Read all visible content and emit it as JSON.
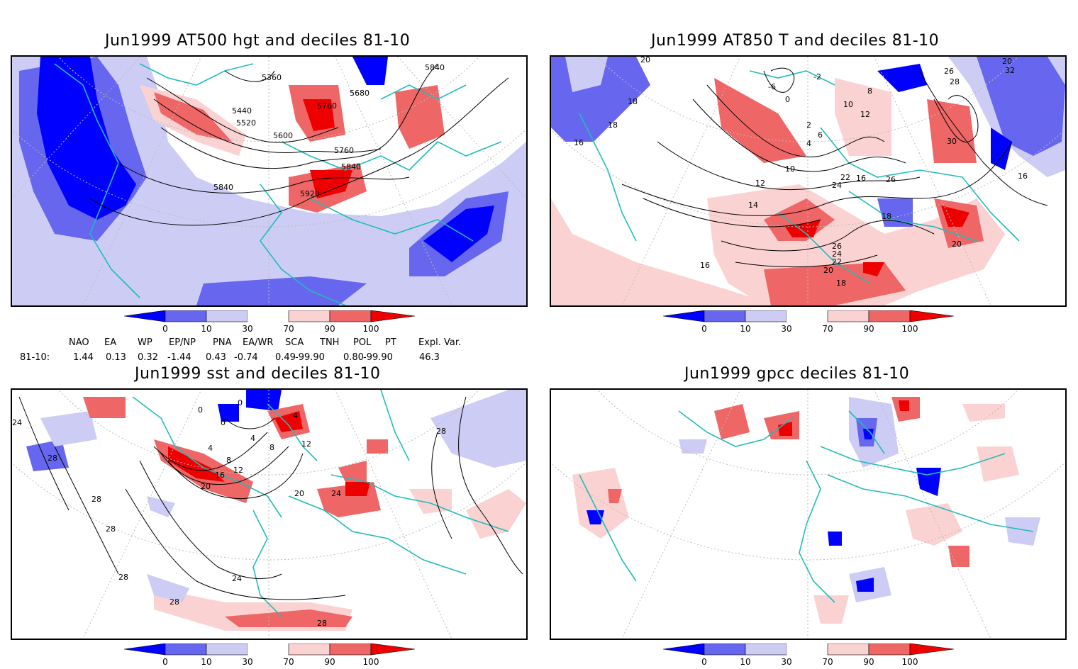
{
  "panels": {
    "p1": {
      "title": "Jun1999 AT500 hgt and deciles 81-10",
      "contour_labels": [
        "5360",
        "5440",
        "5520",
        "5600",
        "5680",
        "5760",
        "5760",
        "5840",
        "5840",
        "5840",
        "5920"
      ]
    },
    "p2": {
      "title": "Jun1999 AT850 T and deciles 81-10",
      "contour_labels": [
        "20",
        "18",
        "18",
        "16",
        "-6",
        "0",
        "-2",
        "2",
        "6",
        "4",
        "8",
        "10",
        "12",
        "10",
        "12",
        "14",
        "16",
        "22",
        "24",
        "26",
        "20",
        "26",
        "28",
        "30",
        "32",
        "18",
        "26",
        "24",
        "22",
        "20",
        "18",
        "20",
        "16",
        "16"
      ]
    },
    "p3": {
      "title": "Jun1999 sst and deciles 81-10",
      "contour_labels": [
        "24",
        "28",
        "28",
        "28",
        "28",
        "0",
        "0",
        "0",
        "4",
        "4",
        "8",
        "4",
        "8",
        "12",
        "12",
        "16",
        "20",
        "20",
        "24",
        "24",
        "28",
        "28",
        "28"
      ]
    },
    "p4": {
      "title": "Jun1999 gpcc deciles 81-10",
      "contour_labels": []
    }
  },
  "colorbar": {
    "ticks": [
      "0",
      "10",
      "30",
      "70",
      "90",
      "100"
    ],
    "colors": {
      "dark_blue": "#0000ff",
      "mid_blue": "#6666ee",
      "light_blue": "#ccccf5",
      "white": "#ffffff",
      "light_red": "#fbd2d2",
      "mid_red": "#ef6666",
      "dark_red": "#ee0000",
      "coastline": "#22bbbb",
      "contour": "#000000",
      "grid": "#bbbbbb"
    }
  },
  "indices": {
    "headers": [
      "NAO",
      "EA",
      "WP",
      "EP/NP",
      "PNA",
      "EA/WR",
      "SCA",
      "TNH",
      "POL",
      "PT",
      "Expl. Var."
    ],
    "row_label": "81-10:",
    "values": [
      "1.44",
      "0.13",
      "0.32",
      "-1.44",
      "0.43",
      "-0.74",
      "0.49",
      "-99.90",
      "0.80",
      "-99.90",
      "46.3"
    ]
  }
}
